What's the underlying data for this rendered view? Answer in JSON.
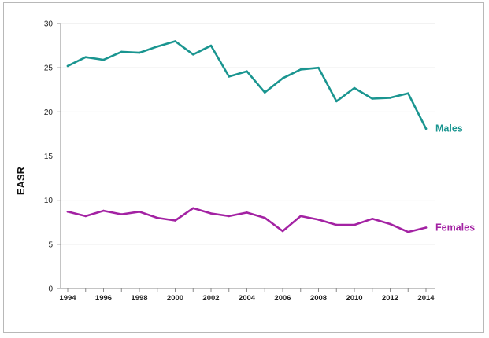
{
  "chart_data": {
    "type": "line",
    "title": "",
    "xlabel": "",
    "ylabel": "EASR",
    "ylim": [
      0,
      30
    ],
    "xlim": [
      1994,
      2014
    ],
    "y_ticks": [
      0,
      5,
      10,
      15,
      20,
      25,
      30
    ],
    "x_tick_labels": [
      "1994",
      "1996",
      "1998",
      "2000",
      "2002",
      "2004",
      "2006",
      "2008",
      "2010",
      "2012",
      "2014"
    ],
    "grid": "horizontal",
    "legend": "end-of-line labels",
    "x": [
      1994,
      1995,
      1996,
      1997,
      1998,
      1999,
      2000,
      2001,
      2002,
      2003,
      2004,
      2005,
      2006,
      2007,
      2008,
      2009,
      2010,
      2011,
      2012,
      2013,
      2014
    ],
    "series": [
      {
        "name": "Males",
        "color": "#1a9590",
        "values": [
          25.2,
          26.2,
          25.9,
          26.8,
          26.7,
          27.4,
          28.0,
          26.5,
          27.5,
          24.0,
          24.6,
          22.2,
          23.8,
          24.8,
          25.0,
          21.2,
          22.7,
          21.5,
          21.6,
          22.1,
          18.1
        ]
      },
      {
        "name": "Females",
        "color": "#a322a3",
        "values": [
          8.7,
          8.2,
          8.8,
          8.4,
          8.7,
          8.0,
          7.7,
          9.1,
          8.5,
          8.2,
          8.6,
          8.0,
          6.5,
          8.2,
          7.8,
          7.2,
          7.2,
          7.9,
          7.3,
          6.4,
          6.9
        ]
      }
    ]
  }
}
